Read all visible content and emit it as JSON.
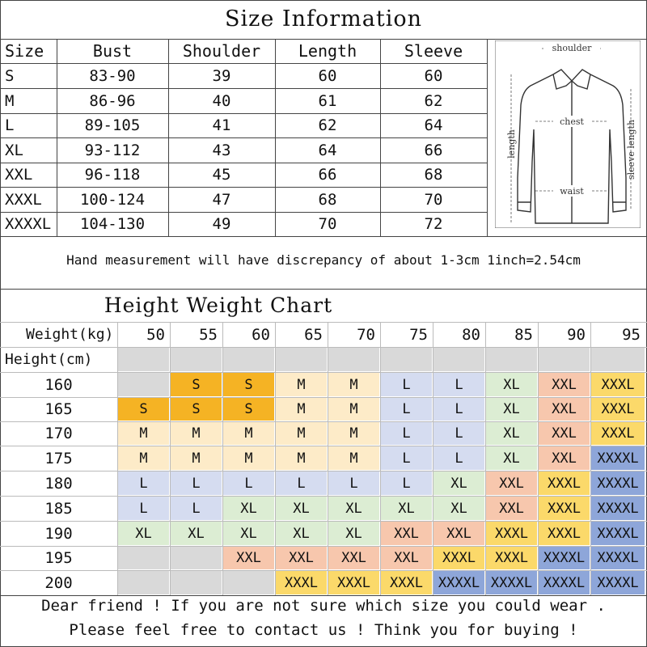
{
  "title": "Size Information",
  "size_table": {
    "headers": [
      "Size",
      "Bust",
      "Shoulder",
      "Length",
      "Sleeve"
    ],
    "rows": [
      [
        "S",
        "83-90",
        "39",
        "60",
        "60"
      ],
      [
        "M",
        "86-96",
        "40",
        "61",
        "62"
      ],
      [
        "L",
        "89-105",
        "41",
        "62",
        "64"
      ],
      [
        "XL",
        "93-112",
        "43",
        "64",
        "66"
      ],
      [
        "XXL",
        "96-118",
        "45",
        "66",
        "68"
      ],
      [
        "XXXL",
        "100-124",
        "47",
        "68",
        "70"
      ],
      [
        "XXXXL",
        "104-130",
        "49",
        "70",
        "72"
      ]
    ]
  },
  "diagram": {
    "shoulder": "shoulder",
    "chest": "chest",
    "length": "length",
    "sleeve_length": "sleeve length",
    "waist": "waist"
  },
  "note": "Hand measurement will have discrepancy of about 1-3cm  1inch=2.54cm",
  "hw_chart": {
    "title": "Height Weight Chart",
    "weight_label": "Weight(kg)",
    "height_label": "Height(cm)",
    "weights": [
      "50",
      "55",
      "60",
      "65",
      "70",
      "75",
      "80",
      "85",
      "90",
      "95"
    ],
    "rows": [
      {
        "height": "160",
        "sizes": [
          "",
          "S",
          "S",
          "M",
          "M",
          "L",
          "L",
          "XL",
          "XXL",
          "XXXL"
        ]
      },
      {
        "height": "165",
        "sizes": [
          "S",
          "S",
          "S",
          "M",
          "M",
          "L",
          "L",
          "XL",
          "XXL",
          "XXXL"
        ]
      },
      {
        "height": "170",
        "sizes": [
          "M",
          "M",
          "M",
          "M",
          "M",
          "L",
          "L",
          "XL",
          "XXL",
          "XXXL"
        ]
      },
      {
        "height": "175",
        "sizes": [
          "M",
          "M",
          "M",
          "M",
          "M",
          "L",
          "L",
          "XL",
          "XXL",
          "XXXXL"
        ]
      },
      {
        "height": "180",
        "sizes": [
          "L",
          "L",
          "L",
          "L",
          "L",
          "L",
          "XL",
          "XXL",
          "XXXL",
          "XXXXL"
        ]
      },
      {
        "height": "185",
        "sizes": [
          "L",
          "L",
          "XL",
          "XL",
          "XL",
          "XL",
          "XL",
          "XXL",
          "XXXL",
          "XXXXL"
        ]
      },
      {
        "height": "190",
        "sizes": [
          "XL",
          "XL",
          "XL",
          "XL",
          "XL",
          "XXL",
          "XXL",
          "XXXL",
          "XXXL",
          "XXXXL"
        ]
      },
      {
        "height": "195",
        "sizes": [
          "",
          "",
          "XXL",
          "XXL",
          "XXL",
          "XXL",
          "XXXL",
          "XXXL",
          "XXXXL",
          "XXXXL"
        ]
      },
      {
        "height": "200",
        "sizes": [
          "",
          "",
          "",
          "XXXL",
          "XXXL",
          "XXXL",
          "XXXXL",
          "XXXXL",
          "XXXXL",
          "XXXXL"
        ]
      }
    ],
    "colors": {
      "S": "#f5b324",
      "M": "#fdebc8",
      "L": "#d5dcf0",
      "XL": "#dcedd3",
      "XXL": "#f7c7ad",
      "XXXL": "#fbd96a",
      "XXXXL": "#8ea6d9",
      "empty": "#d9d9d9",
      "none": "#ffffff"
    }
  },
  "footer": {
    "line1": "Dear friend ! If you are not sure which size you could wear .",
    "line2": "Please feel free to contact us ! Think you for buying !"
  }
}
